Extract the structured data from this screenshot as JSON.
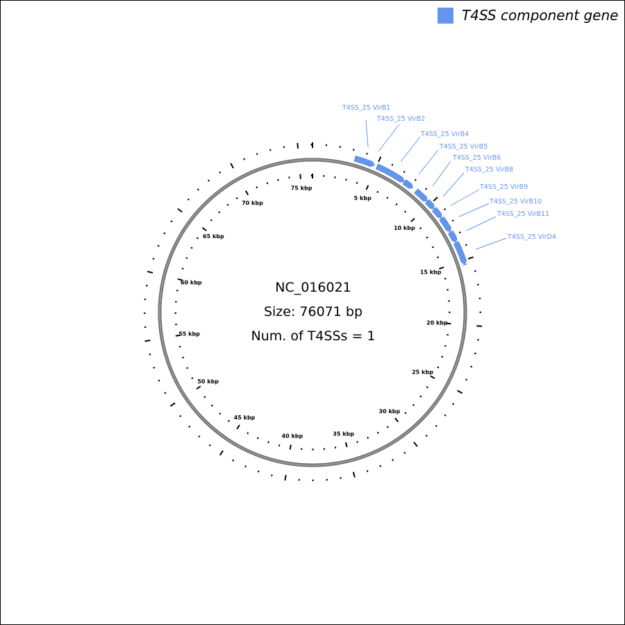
{
  "legend": {
    "label": "T4SS component gene",
    "color": "#6495ED"
  },
  "center": {
    "accession": "NC_016021",
    "size_text": "Size: 76071 bp",
    "t4ss_count_text": "Num. of T4SSs = 1"
  },
  "genome": {
    "length_bp": 76071,
    "tick_minor_bp": 1000,
    "tick_major_bp": 5000
  },
  "tick_labels": [
    "5 kbp",
    "10 kbp",
    "15 kbp",
    "20 kbp",
    "25 kbp",
    "30 kbp",
    "35 kbp",
    "40 kbp",
    "45 kbp",
    "50 kbp",
    "55 kbp",
    "60 kbp",
    "65 kbp",
    "70 kbp",
    "75 kbp"
  ],
  "colors": {
    "ring": "#808080",
    "gene": "#6495ED",
    "label": "#6495ED",
    "tick": "#000000"
  },
  "genes": [
    {
      "name": "T4SS_25 VirB1",
      "start": 3250,
      "end": 4840
    },
    {
      "name": "T4SS_25 VirB2",
      "start": 5030,
      "end": 7400
    },
    {
      "name": "T4SS_25 VirB4",
      "start": 7420,
      "end": 8220
    },
    {
      "name": "T4SS_25 VirB5",
      "start": 8540,
      "end": 9690
    },
    {
      "name": "T4SS_25 VirB6",
      "start": 9700,
      "end": 10480
    },
    {
      "name": "T4SS_25 VirB8",
      "start": 10500,
      "end": 11370
    },
    {
      "name": "T4SS_25 VirB9",
      "start": 11390,
      "end": 12610
    },
    {
      "name": "T4SS_25 VirB10",
      "start": 12630,
      "end": 13520
    },
    {
      "name": "T4SS_25 VirB11",
      "start": 13540,
      "end": 15320
    },
    {
      "name": "T4SS_25 VirD4",
      "start": 15340,
      "end": 15330
    }
  ]
}
